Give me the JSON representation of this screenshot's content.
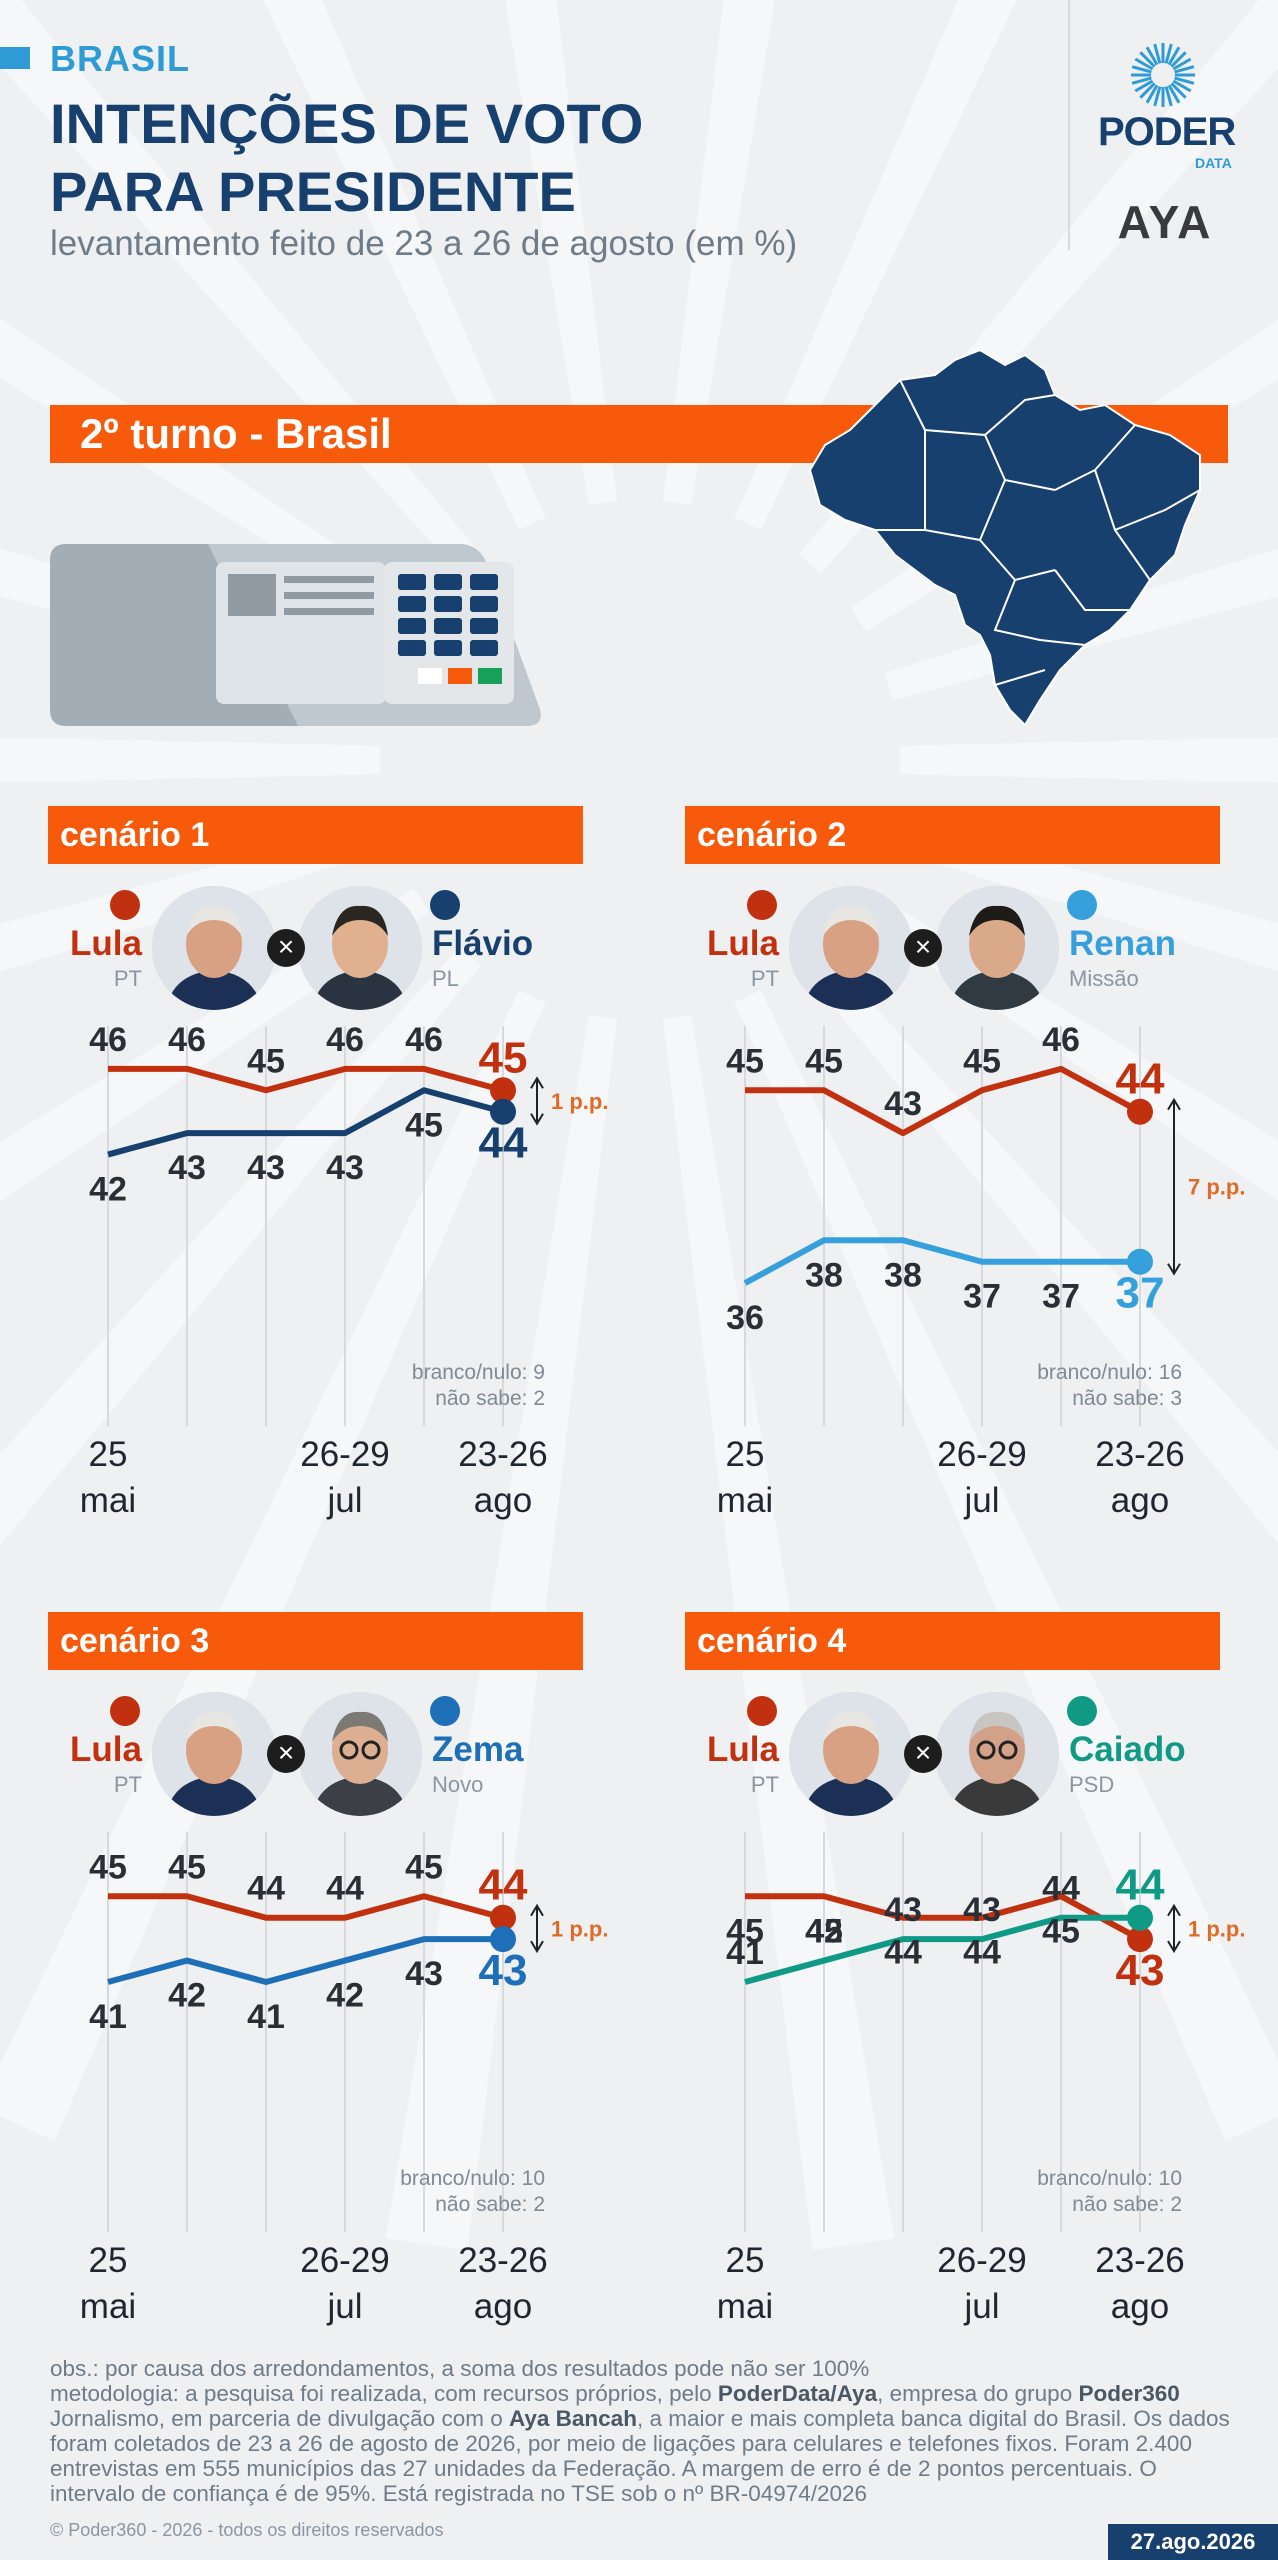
{
  "header": {
    "kicker": "BRASIL",
    "title_line1": "INTENÇÕES DE VOTO",
    "title_line2": "PARA PRESIDENTE",
    "subtitle": "levantamento feito de 23 a 26 de agosto (em %)",
    "logo_poder": "PODER",
    "logo_poder_sub": "DATA",
    "logo_aya": "AYA"
  },
  "banner": "2º turno - Brasil",
  "colors": {
    "orange": "#f75a0a",
    "lula": "#c2310f",
    "navy": "#17406e",
    "blue_light": "#36a0dc",
    "blue_zema": "#1f6fb8",
    "teal": "#0f9a86"
  },
  "x_ticks": [
    {
      "line1": "25",
      "line2": "mai"
    },
    {
      "line1": "26-29",
      "line2": "jul"
    },
    {
      "line1": "23-26",
      "line2": "ago"
    }
  ],
  "chart_data": [
    {
      "type": "line",
      "title": "cenário 1",
      "x": [
        "25 mai",
        "",
        "",
        "26-29 jul",
        "",
        "23-26 ago"
      ],
      "series": [
        {
          "name": "Lula",
          "party": "PT",
          "values": [
            46,
            46,
            45,
            46,
            46,
            45
          ]
        },
        {
          "name": "Flávio",
          "party": "PL",
          "values": [
            42,
            43,
            43,
            43,
            45,
            44
          ]
        }
      ],
      "diff_label": "1 p.p.",
      "note_blank": "branco/nulo: 9",
      "note_unsure": "não sabe: 2"
    },
    {
      "type": "line",
      "title": "cenário 2",
      "x": [
        "25 mai",
        "",
        "",
        "26-29 jul",
        "",
        "23-26 ago"
      ],
      "series": [
        {
          "name": "Lula",
          "party": "PT",
          "values": [
            45,
            45,
            43,
            45,
            46,
            44
          ]
        },
        {
          "name": "Renan",
          "party": "Missão",
          "values": [
            36,
            38,
            38,
            37,
            37,
            37
          ]
        }
      ],
      "diff_label": "7 p.p.",
      "note_blank": "branco/nulo: 16",
      "note_unsure": "não sabe: 3"
    },
    {
      "type": "line",
      "title": "cenário 3",
      "x": [
        "25 mai",
        "",
        "",
        "26-29 jul",
        "",
        "23-26 ago"
      ],
      "series": [
        {
          "name": "Lula",
          "party": "PT",
          "values": [
            45,
            45,
            44,
            44,
            45,
            44
          ]
        },
        {
          "name": "Zema",
          "party": "Novo",
          "values": [
            41,
            42,
            41,
            42,
            43,
            43
          ]
        }
      ],
      "diff_label": "1 p.p.",
      "note_blank": "branco/nulo: 10",
      "note_unsure": "não sabe: 2"
    },
    {
      "type": "line",
      "title": "cenário 4",
      "x": [
        "25 mai",
        "",
        "",
        "26-29 jul",
        "",
        "23-26 ago"
      ],
      "series": [
        {
          "name": "Lula",
          "party": "PT",
          "values": [
            45,
            45,
            44,
            44,
            45,
            43
          ]
        },
        {
          "name": "Caiado",
          "party": "PSD",
          "values": [
            41,
            42,
            43,
            43,
            44,
            44
          ]
        }
      ],
      "diff_label": "1 p.p.",
      "note_blank": "branco/nulo: 10",
      "note_unsure": "não sabe: 2"
    }
  ],
  "footer": {
    "obs": "obs.: por causa dos arredondamentos, a soma dos resultados pode não ser 100%",
    "met_a": "metodologia: a pesquisa foi realizada, com recursos próprios, pelo ",
    "met_b": "PoderData/Aya",
    "met_c": ", empresa do grupo ",
    "met_d": "Poder360",
    "met_e": " Jornalismo, em parceria de divulgação com o ",
    "met_f": "Aya Bancah",
    "met_g": ", a maior e mais completa banca digital do Brasil. Os dados foram coletados de 23 a 26 de agosto de 2026, por meio de ligações para celulares e telefones fixos. Foram 2.400 entrevistas em 555 municípios das 27 unidades da Federação. A margem de erro é de 2 pontos percentuais. O intervalo de confiança é de 95%. Está registrada no TSE sob o nº BR-04974/2026",
    "copyright": "© Poder360 - 2026 - todos os direitos reservados",
    "date": "27.ago.2026"
  }
}
